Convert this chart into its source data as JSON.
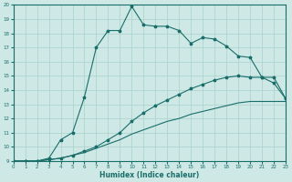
{
  "xlabel": "Humidex (Indice chaleur)",
  "xlim": [
    0,
    23
  ],
  "ylim": [
    9,
    20
  ],
  "xticks": [
    0,
    1,
    2,
    3,
    4,
    5,
    6,
    7,
    8,
    9,
    10,
    11,
    12,
    13,
    14,
    15,
    16,
    17,
    18,
    19,
    20,
    21,
    22,
    23
  ],
  "yticks": [
    9,
    10,
    11,
    12,
    13,
    14,
    15,
    16,
    17,
    18,
    19,
    20
  ],
  "background_color": "#cde8e5",
  "grid_color": "#aed4d0",
  "line_color": "#1a6e6a",
  "line1_x": [
    0,
    1,
    2,
    3,
    4,
    5,
    6,
    7,
    8,
    9,
    10,
    11,
    12,
    13,
    14,
    15,
    16,
    17,
    18,
    19,
    20,
    21,
    22,
    23
  ],
  "line1_y": [
    9,
    9,
    9,
    9.2,
    10.5,
    11.0,
    13.5,
    17.0,
    18.2,
    18.2,
    19.9,
    18.6,
    18.5,
    18.5,
    18.2,
    17.3,
    17.7,
    17.6,
    17.1,
    16.4,
    16.3,
    14.9,
    14.9,
    13.4
  ],
  "line2_x": [
    0,
    1,
    2,
    3,
    4,
    5,
    6,
    7,
    8,
    9,
    10,
    11,
    12,
    13,
    14,
    15,
    16,
    17,
    18,
    19,
    20,
    21,
    22,
    23
  ],
  "line2_y": [
    9,
    9,
    9,
    9.1,
    9.2,
    9.4,
    9.7,
    10.0,
    10.5,
    11.0,
    11.8,
    12.4,
    12.9,
    13.3,
    13.7,
    14.1,
    14.4,
    14.7,
    14.9,
    15.0,
    14.9,
    14.9,
    14.5,
    13.4
  ],
  "line3_x": [
    0,
    1,
    2,
    3,
    4,
    5,
    6,
    7,
    8,
    9,
    10,
    11,
    12,
    13,
    14,
    15,
    16,
    17,
    18,
    19,
    20,
    21,
    22,
    23
  ],
  "line3_y": [
    9,
    9,
    9,
    9.1,
    9.2,
    9.4,
    9.6,
    9.9,
    10.2,
    10.5,
    10.9,
    11.2,
    11.5,
    11.8,
    12.0,
    12.3,
    12.5,
    12.7,
    12.9,
    13.1,
    13.2,
    13.2,
    13.2,
    13.2
  ]
}
